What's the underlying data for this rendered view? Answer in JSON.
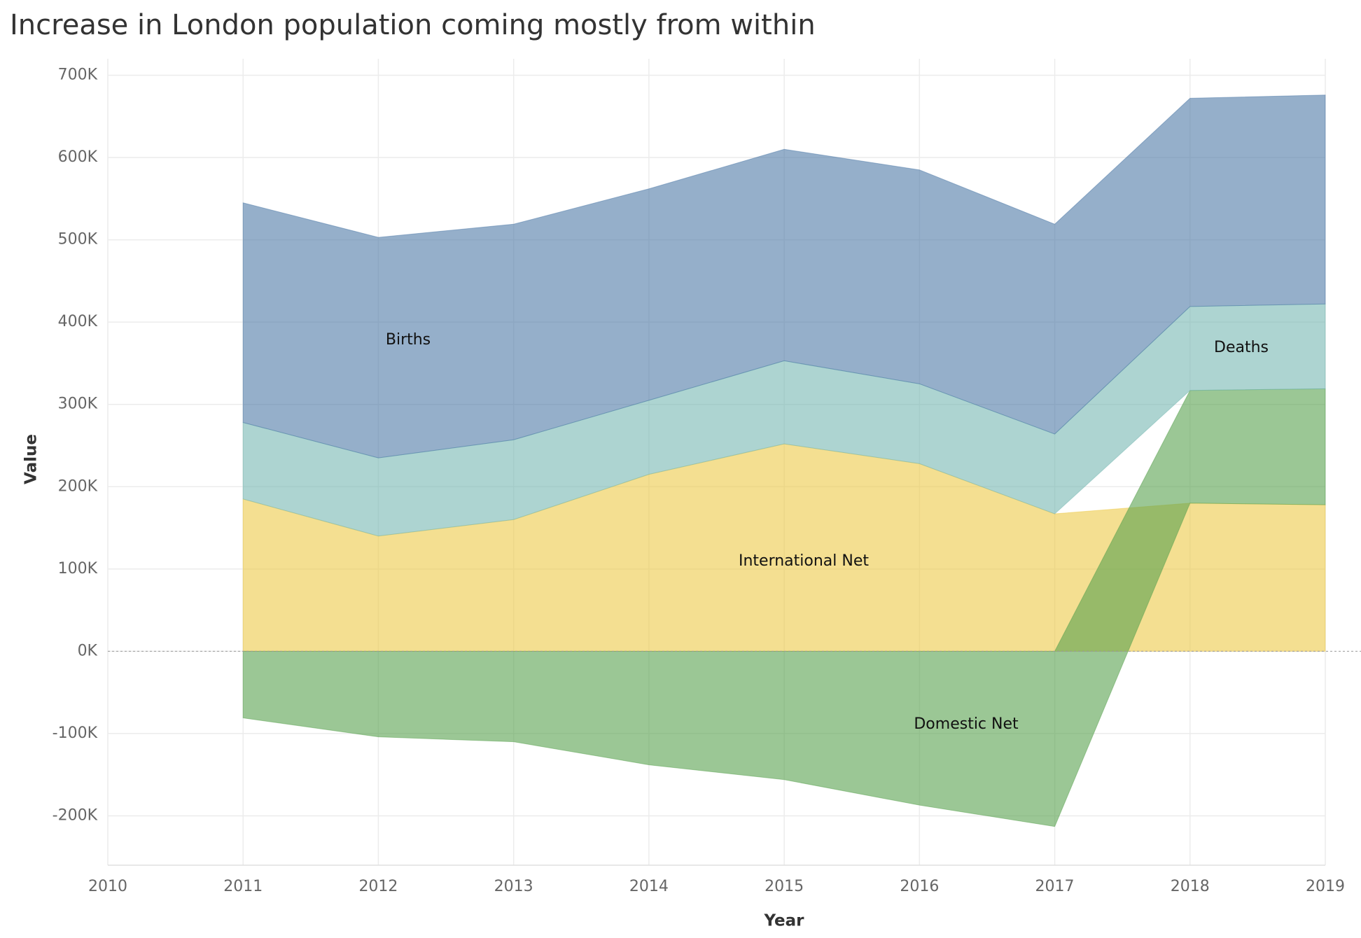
{
  "chart_data": {
    "type": "stacked_area",
    "title": "Increase in London population coming mostly from within",
    "x_label": "Year",
    "y_label": "Value",
    "x": [
      2011,
      2012,
      2013,
      2014,
      2015,
      2016,
      2017,
      2018,
      2019
    ],
    "series": [
      {
        "name": "International Net",
        "color": "#edc948",
        "values": [
          185000,
          140000,
          160000,
          215000,
          252000,
          228000,
          167000,
          180000,
          178000
        ]
      },
      {
        "name": "Domestic Net",
        "color": "#59a14f",
        "values": [
          -81000,
          -104000,
          -110000,
          -138000,
          -156000,
          -187000,
          -213000,
          137000,
          141000
        ]
      },
      {
        "name": "Deaths",
        "color": "#76b7b2",
        "values": [
          93000,
          95000,
          97000,
          90000,
          101000,
          97000,
          97000,
          102000,
          103000
        ]
      },
      {
        "name": "Births",
        "color": "#4e79a7",
        "values": [
          267000,
          268000,
          262000,
          257000,
          257000,
          260000,
          255000,
          253000,
          254000
        ]
      }
    ],
    "xlim": [
      2010,
      2019
    ],
    "xticks": [
      2010,
      2011,
      2012,
      2013,
      2014,
      2015,
      2016,
      2017,
      2018,
      2019
    ],
    "ylim": [
      -260000,
      720000
    ],
    "yticks": [
      {
        "value": -200000,
        "label": "-200K"
      },
      {
        "value": -100000,
        "label": "-100K"
      },
      {
        "value": 0,
        "label": "0K"
      },
      {
        "value": 100000,
        "label": "100K"
      },
      {
        "value": 200000,
        "label": "200K"
      },
      {
        "value": 300000,
        "label": "300K"
      },
      {
        "value": 400000,
        "label": "400K"
      },
      {
        "value": 500000,
        "label": "500K"
      },
      {
        "value": 600000,
        "label": "600K"
      },
      {
        "value": 700000,
        "label": "700K"
      }
    ],
    "grid": true
  }
}
